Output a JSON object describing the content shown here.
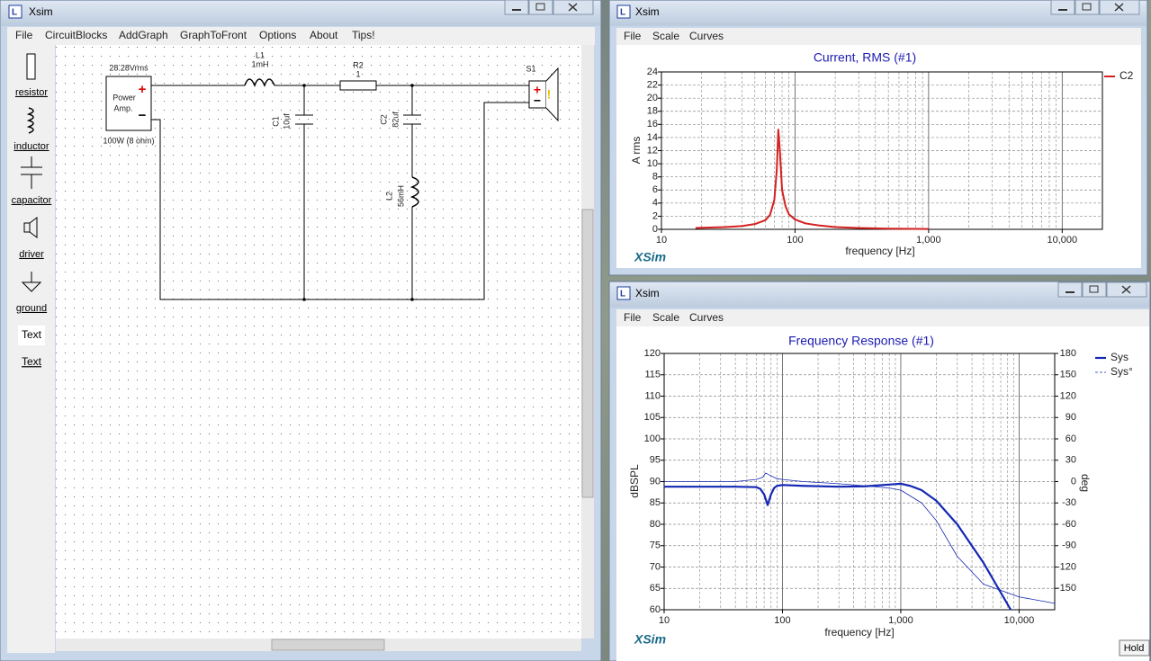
{
  "windows": [
    {
      "title": "Xsim",
      "menu": [
        "File",
        "CircuitBlocks",
        "AddGraph",
        "GraphToFront",
        "Options",
        "About",
        "Tips!"
      ]
    },
    {
      "title": "Xsim",
      "menu": [
        "File",
        "Scale",
        "Curves"
      ]
    },
    {
      "title": "Xsim",
      "menu": [
        "File",
        "Scale",
        "Curves"
      ]
    }
  ],
  "toolbox": [
    "resistor",
    "inductor",
    "capacitor",
    "driver",
    "ground",
    "Text",
    "Text"
  ],
  "circuit": {
    "source": {
      "voltage": "28.28Vrms",
      "name": [
        "Power",
        "Amp."
      ],
      "rating": "100W (8 ohm)",
      "plus": "+",
      "minus": "−"
    },
    "L1": {
      "name": "L1",
      "value": "1mH"
    },
    "R2": {
      "name": "R2",
      "value": "1"
    },
    "C1": {
      "name": "C1",
      "value": "10uf"
    },
    "C2": {
      "name": "C2",
      "value": "82uf"
    },
    "L2": {
      "name": "L2",
      "value": "56mH"
    },
    "S1": {
      "name": "S1",
      "plus": "+",
      "minus": "−",
      "warning": "!"
    }
  },
  "chart_data": [
    {
      "type": "line",
      "title": "Current, RMS (#1)",
      "xlabel": "frequency [Hz]",
      "ylabel": "A rms",
      "xscale": "log",
      "xlim": [
        10,
        20000
      ],
      "xticks": [
        10,
        100,
        {
          "value": 1000,
          "label": "1,000"
        },
        {
          "value": 10000,
          "label": "10,000"
        }
      ],
      "ylim": [
        0,
        24
      ],
      "yticks": [
        0,
        2,
        4,
        6,
        8,
        10,
        12,
        14,
        16,
        18,
        20,
        22,
        24
      ],
      "grid": true,
      "legend": "right",
      "watermark": "XSim",
      "series": [
        {
          "name": "C2",
          "color": "#d42020",
          "width": 2,
          "x": [
            18,
            30,
            40,
            50,
            60,
            65,
            70,
            73,
            75,
            77,
            80,
            85,
            90,
            100,
            120,
            150,
            200,
            300,
            500,
            1000
          ],
          "values": [
            0.2,
            0.35,
            0.5,
            0.8,
            1.4,
            2.2,
            4.5,
            9,
            15.2,
            12,
            6,
            3.5,
            2.3,
            1.5,
            0.9,
            0.6,
            0.35,
            0.2,
            0.1,
            0.05
          ]
        }
      ]
    },
    {
      "type": "line",
      "title": "Frequency Response (#1)",
      "xlabel": "frequency [Hz]",
      "ylabel": "dBSPL",
      "y2label": "deg",
      "xscale": "log",
      "xlim": [
        10,
        20000
      ],
      "xticks": [
        10,
        100,
        {
          "value": 1000,
          "label": "1,000"
        },
        {
          "value": 10000,
          "label": "10,000"
        }
      ],
      "ylim": [
        60,
        120
      ],
      "yticks": [
        60,
        65,
        70,
        75,
        80,
        85,
        90,
        95,
        100,
        105,
        110,
        115,
        120
      ],
      "y2lim": [
        -180,
        180
      ],
      "y2ticks": [
        -150,
        -120,
        -90,
        -60,
        -30,
        0,
        30,
        60,
        90,
        120,
        150,
        180
      ],
      "grid": true,
      "legend": "right",
      "watermark": "XSim",
      "button": "Hold",
      "series": [
        {
          "name": "Sys",
          "color": "#1428b4",
          "width": 2.2,
          "style": "solid",
          "x": [
            10,
            20,
            40,
            60,
            65,
            70,
            75,
            80,
            85,
            90,
            100,
            150,
            300,
            500,
            800,
            1000,
            1200,
            1500,
            2000,
            3000,
            5000,
            8500
          ],
          "values": [
            88.8,
            88.8,
            88.8,
            88.7,
            88.3,
            87,
            84.5,
            87,
            88.5,
            89,
            89.2,
            89,
            88.8,
            88.9,
            89.3,
            89.5,
            89,
            88,
            85.5,
            80,
            71,
            60
          ]
        },
        {
          "name": "Sys°",
          "color": "#1428b4",
          "width": 0.8,
          "style": "dashed",
          "axis": "y2",
          "x": [
            10,
            20,
            40,
            60,
            68,
            72,
            76,
            80,
            90,
            100,
            150,
            300,
            500,
            800,
            1000,
            1500,
            2000,
            3000,
            5000,
            10000,
            20000
          ],
          "values": [
            0,
            0,
            0,
            3,
            6,
            12,
            10,
            8,
            4,
            3,
            0,
            -3,
            -6,
            -9,
            -12,
            -30,
            -55,
            -105,
            -144,
            -162,
            -171
          ]
        }
      ]
    }
  ]
}
